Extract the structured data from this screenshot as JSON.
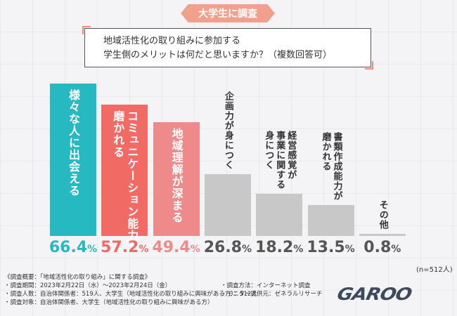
{
  "badge": "大学生に調査",
  "question": {
    "line1": "地域活性化の取り組みに参加する",
    "line2": "学生側のメリットは何だと思いますか？（複数回答可）"
  },
  "chart_data": {
    "type": "bar",
    "title": "地域活性化の取り組みに参加する学生側のメリットは何だと思いますか？（複数回答可）",
    "categories": [
      "様々な人に出会える",
      "コミュニケーション能力が磨かれる",
      "地域理解が深まる",
      "企画力が身につく",
      "経営感覚が身につく 事業に関する",
      "書類作成能力が磨かれる",
      "その他"
    ],
    "label_lines": [
      [
        "様々な人に出会える"
      ],
      [
        "コミュニケーション能力が",
        "磨かれる"
      ],
      [
        "地域理解が深まる"
      ],
      [
        "企画力が身につく"
      ],
      [
        "経営感覚が",
        "事業に関する",
        "身につく"
      ],
      [
        "書類作成能力が",
        "磨かれる"
      ],
      [
        "その他"
      ]
    ],
    "values": [
      66.4,
      57.2,
      49.4,
      26.8,
      18.2,
      13.5,
      0.8
    ],
    "value_texts": [
      "66.4",
      "57.2",
      "49.4",
      "26.8",
      "18.2",
      "13.5",
      "0.8"
    ],
    "unit": "%",
    "colors": [
      "#26b9c2",
      "#f26a64",
      "#ee8a8a",
      "#c8c8c8",
      "#c8c8c8",
      "#c8c8c8",
      "#c8c8c8"
    ],
    "label_colors": [
      "#ffffff",
      "#ffffff",
      "#ffffff",
      "#333333",
      "#333333",
      "#333333",
      "#333333"
    ],
    "value_colors": [
      "#26b9c2",
      "#f26a64",
      "#ee8a8a",
      "#555555",
      "#555555",
      "#555555",
      "#555555"
    ],
    "ylim": [
      0,
      70
    ]
  },
  "n_note": "(n=512人)",
  "survey": {
    "header": "《調査概要：「地域活性化の取り組み」に関する調査》",
    "period": "・調査期間：2023年2月22日（水）〜2023年2月24日（金）",
    "count": "・調査人数：自治体関係者：519人、大学生（地域活性化の取り組みに興味がある方）：512人",
    "target": "・調査対象：自治体関係者、大学生（地域活性化の取り組みに興味がある方）",
    "method": "・調査方法：インターネット調査",
    "provider": "・モニター提供元：ゼネラルリサーチ"
  },
  "logo": "GAROO"
}
